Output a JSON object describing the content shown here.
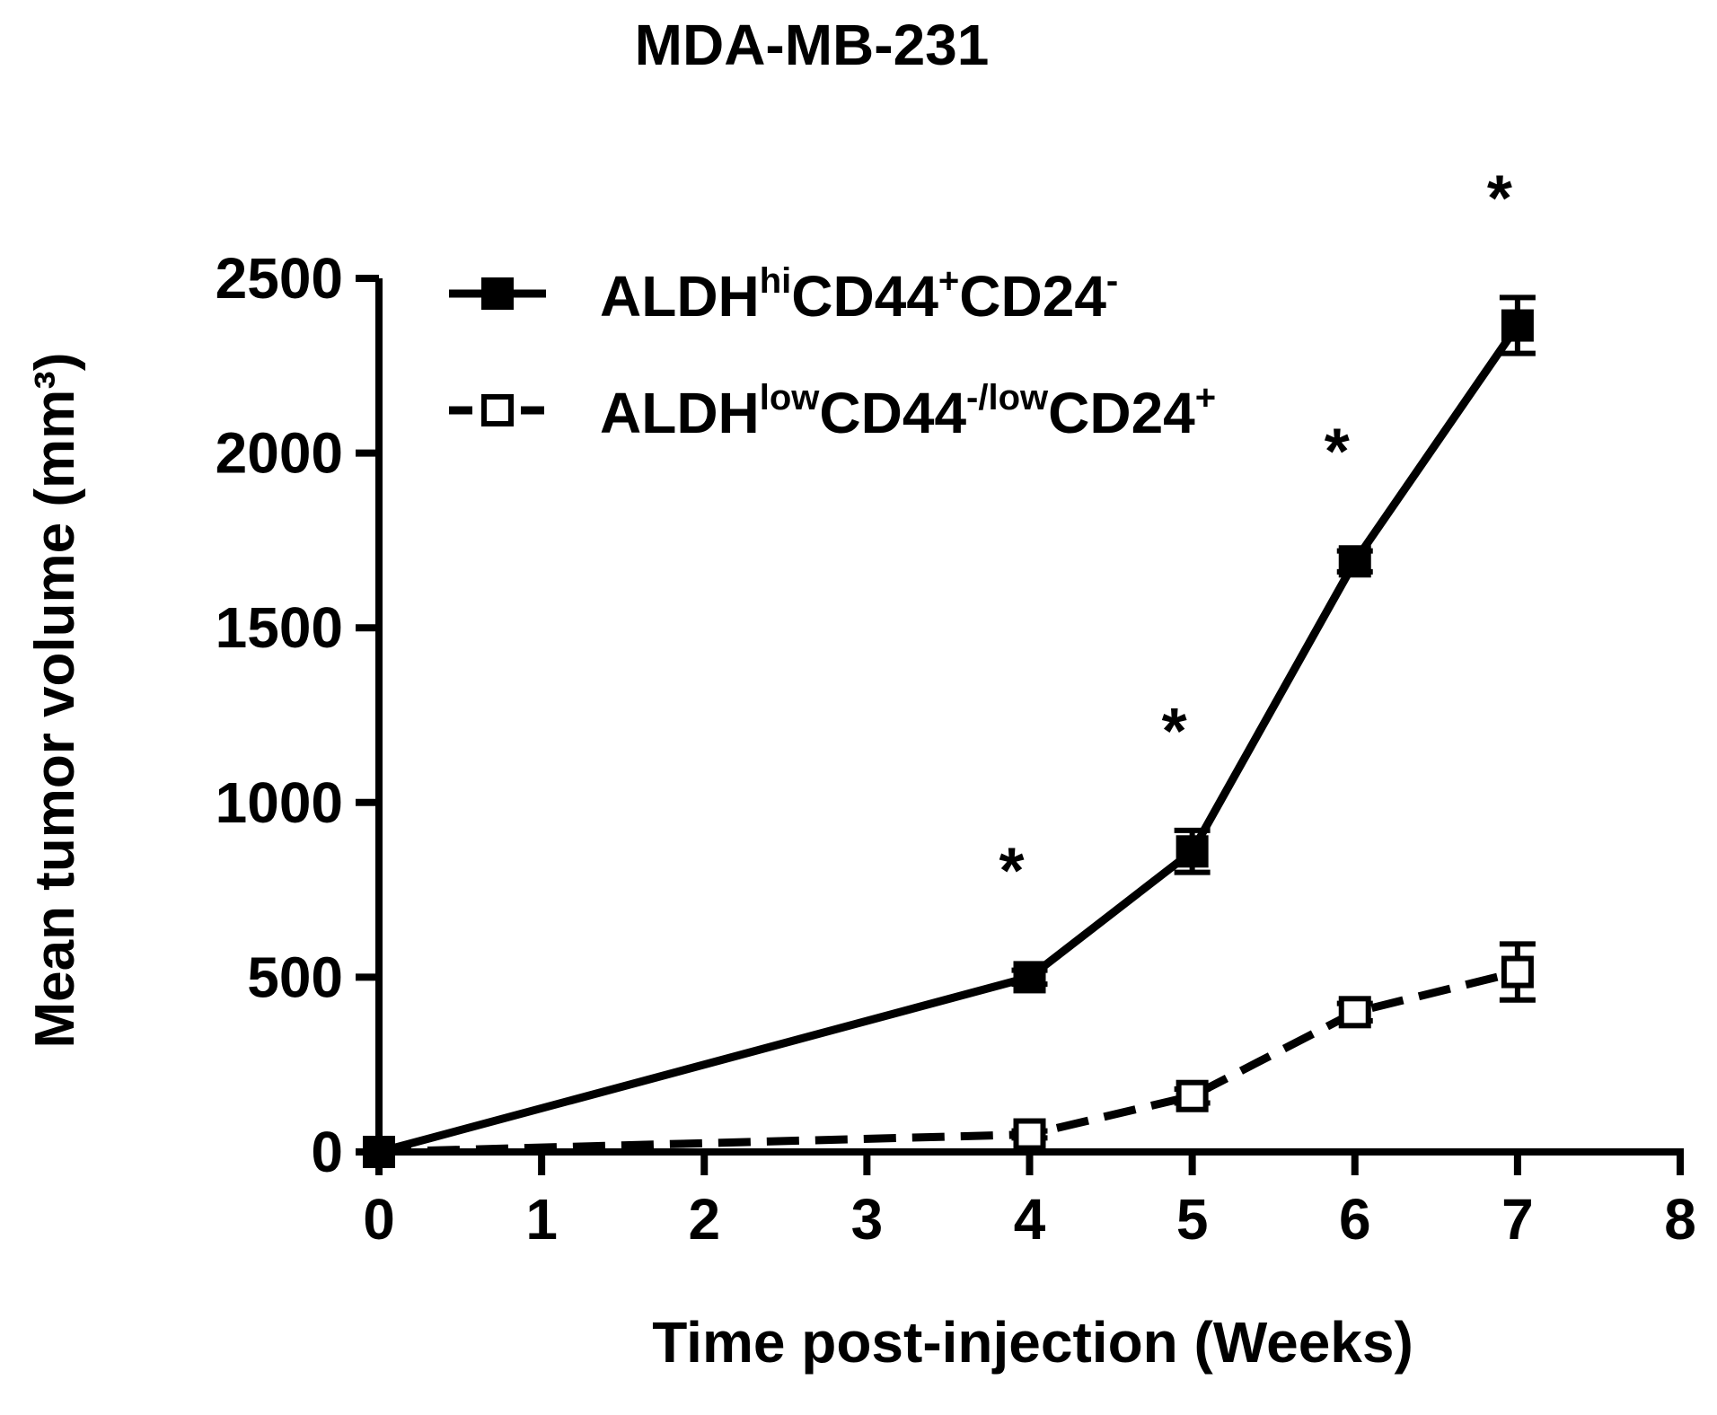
{
  "chart_data": {
    "type": "line",
    "title": "MDA-MB-231",
    "xlabel": "Time post-injection (Weeks)",
    "ylabel": "Mean tumor volume (mm³)",
    "xlim": [
      0,
      8
    ],
    "ylim": [
      0,
      2500
    ],
    "xticks": [
      0,
      1,
      2,
      3,
      4,
      5,
      6,
      7,
      8
    ],
    "yticks": [
      0,
      500,
      1000,
      1500,
      2000,
      2500
    ],
    "grid": false,
    "legend_position": "top-left",
    "series": [
      {
        "name": "ALDHhiCD44+CD24-",
        "legend_parts": [
          {
            "t": "ALDH",
            "s": ""
          },
          {
            "t": "hi",
            "s": "sup"
          },
          {
            "t": "CD44",
            "s": ""
          },
          {
            "t": "+",
            "s": "sup"
          },
          {
            "t": "CD24",
            "s": ""
          },
          {
            "t": "-",
            "s": "sup"
          }
        ],
        "marker": "filled-square",
        "line_style": "solid",
        "color": "#000000",
        "x": [
          0,
          4,
          5,
          6,
          7
        ],
        "y": [
          0,
          500,
          860,
          1690,
          2365
        ],
        "error": [
          0,
          20,
          60,
          30,
          80
        ],
        "significance": [
          "",
          "*",
          "*",
          "*",
          "*"
        ]
      },
      {
        "name": "ALDHlowCD44-/lowCD24+",
        "legend_parts": [
          {
            "t": "ALDH",
            "s": ""
          },
          {
            "t": "low",
            "s": "sup"
          },
          {
            "t": "CD44",
            "s": ""
          },
          {
            "t": "-/low",
            "s": "sup"
          },
          {
            "t": "CD24",
            "s": ""
          },
          {
            "t": "+",
            "s": "sup"
          }
        ],
        "marker": "open-square",
        "line_style": "dashed",
        "color": "#000000",
        "x": [
          0,
          4,
          5,
          6,
          7
        ],
        "y": [
          0,
          50,
          160,
          400,
          515
        ],
        "error": [
          0,
          10,
          20,
          25,
          80
        ],
        "significance": [
          "",
          "",
          "",
          "",
          ""
        ]
      }
    ]
  }
}
